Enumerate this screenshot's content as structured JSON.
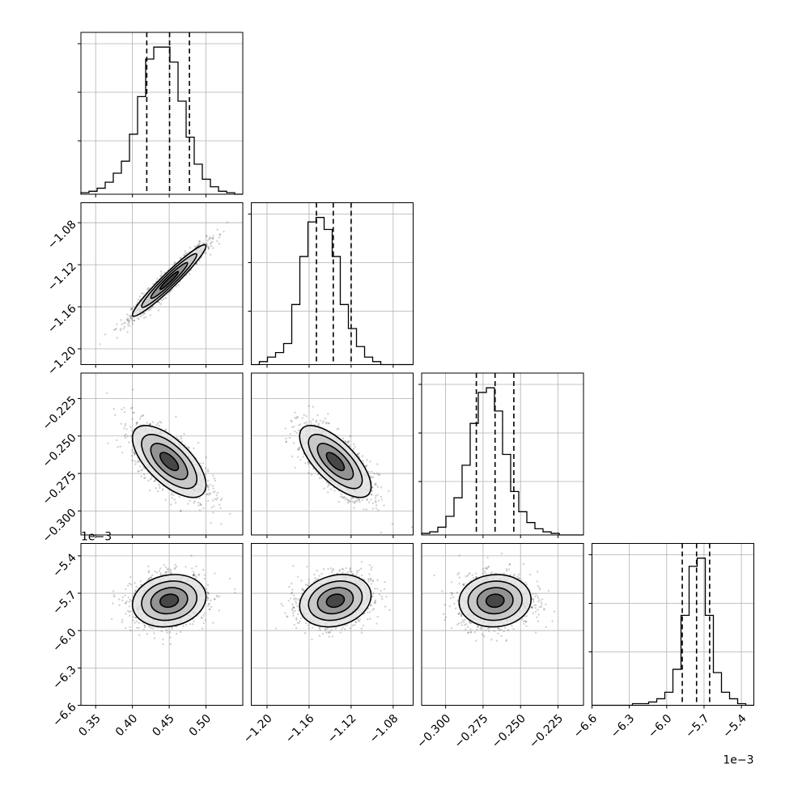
{
  "chart_data": {
    "type": "corner",
    "parameters": [
      {
        "range": [
          0.33,
          0.55
        ],
        "xticks": [
          0.35,
          0.4,
          0.45,
          0.5
        ],
        "xtick_labels": [
          "0.35",
          "0.40",
          "0.45",
          "0.50"
        ],
        "mean": 0.45,
        "sd": 0.025,
        "quantiles": [
          0.4195,
          0.4505,
          0.4775
        ],
        "hist": [
          1,
          2,
          4,
          8,
          14,
          22,
          40,
          65,
          90,
          98,
          98,
          88,
          62,
          38,
          20,
          10,
          5,
          2,
          1,
          0
        ]
      },
      {
        "range": [
          -1.215,
          -1.061
        ],
        "xticks": [
          -1.2,
          -1.16,
          -1.12,
          -1.08
        ],
        "xtick_labels": [
          "−1.20",
          "−1.16",
          "−1.12",
          "−1.08"
        ],
        "yticks": [
          -1.2,
          -1.16,
          -1.12,
          -1.08
        ],
        "ytick_labels": [
          "−1.20",
          "−1.16",
          "−1.12",
          "−1.08"
        ],
        "mean": -1.135,
        "sd": 0.017,
        "quantiles": [
          -1.153,
          -1.137,
          -1.12
        ],
        "hist": [
          0,
          2,
          5,
          8,
          14,
          40,
          72,
          95,
          98,
          90,
          72,
          40,
          24,
          12,
          5,
          2,
          0,
          0,
          0,
          0
        ]
      },
      {
        "range": [
          -0.316,
          -0.208
        ],
        "xticks": [
          -0.3,
          -0.275,
          -0.25,
          -0.225
        ],
        "xtick_labels": [
          "−0.300",
          "−0.275",
          "−0.250",
          "−0.225"
        ],
        "yticks": [
          -0.225,
          -0.25,
          -0.275,
          -0.3
        ],
        "ytick_labels": [
          "−0.225",
          "−0.250",
          "−0.275",
          "−0.300"
        ],
        "mean": -0.267,
        "sd": 0.012,
        "quantiles": [
          -0.2795,
          -0.267,
          -0.2545
        ],
        "hist": [
          1,
          2,
          5,
          12,
          24,
          45,
          72,
          92,
          95,
          80,
          52,
          28,
          15,
          8,
          4,
          2,
          1,
          0,
          0,
          0
        ]
      },
      {
        "range": [
          -6.6,
          -5.3
        ],
        "xticks": [
          -6.6,
          -6.3,
          -6.0,
          -5.7,
          -5.4
        ],
        "xtick_labels": [
          "−6.6",
          "−6.3",
          "−6.0",
          "−5.7",
          "−5.4"
        ],
        "yticks": [
          -5.4,
          -5.7,
          -6.0,
          -6.3,
          -6.6
        ],
        "ytick_labels": [
          "−5.4",
          "−5.7",
          "−6.0",
          "−6.3",
          "−6.6"
        ],
        "mean": -5.76,
        "sd": 0.105,
        "quantiles": [
          -5.875,
          -5.76,
          -5.655
        ],
        "hist": [
          0,
          0,
          0,
          0,
          0,
          1,
          1,
          2,
          4,
          8,
          22,
          55,
          85,
          90,
          55,
          20,
          8,
          4,
          1,
          0
        ],
        "scale_exponent": "1e−3"
      }
    ],
    "correlations": [
      {
        "i": 1,
        "j": 0,
        "rho": 0.96
      },
      {
        "i": 2,
        "j": 0,
        "rho": -0.65
      },
      {
        "i": 2,
        "j": 1,
        "rho": -0.7
      },
      {
        "i": 3,
        "j": 0,
        "rho": 0.15
      },
      {
        "i": 3,
        "j": 1,
        "rho": 0.2
      },
      {
        "i": 3,
        "j": 2,
        "rho": 0.05
      }
    ],
    "grid": true,
    "scale_exponent_label": "1e−3"
  }
}
